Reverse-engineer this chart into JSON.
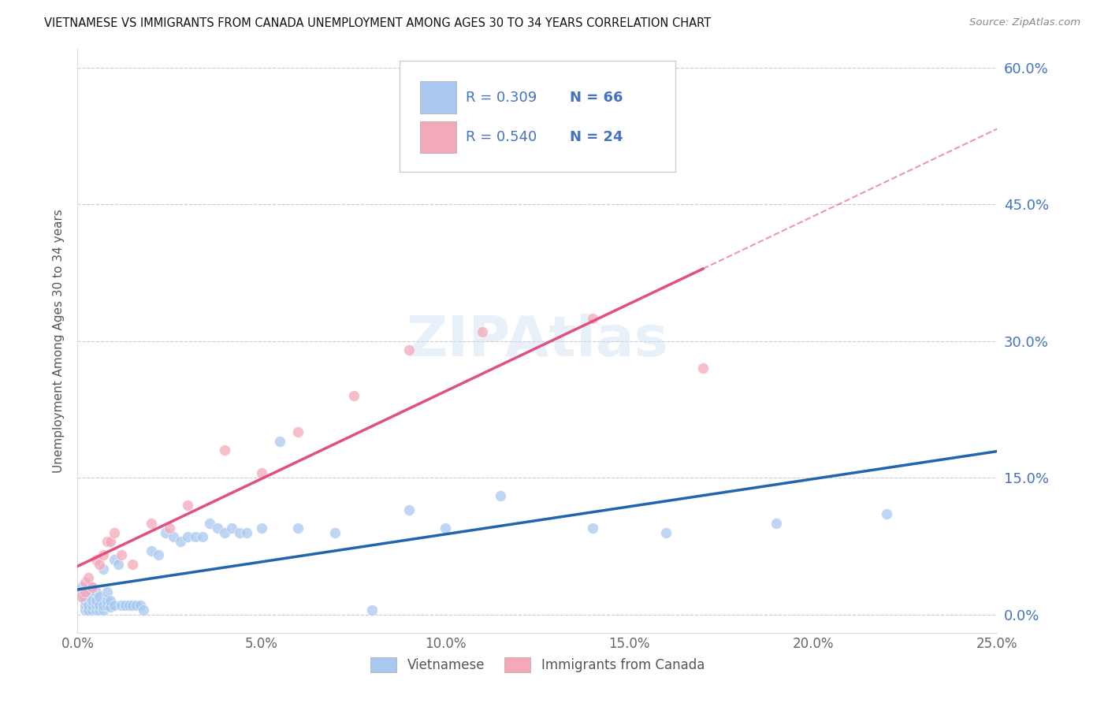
{
  "title": "VIETNAMESE VS IMMIGRANTS FROM CANADA UNEMPLOYMENT AMONG AGES 30 TO 34 YEARS CORRELATION CHART",
  "source": "Source: ZipAtlas.com",
  "ylabel": "Unemployment Among Ages 30 to 34 years",
  "xlabel_ticks": [
    "0.0%",
    "5.0%",
    "10.0%",
    "15.0%",
    "20.0%",
    "25.0%"
  ],
  "ylabel_ticks_right": [
    "0.0%",
    "15.0%",
    "30.0%",
    "45.0%",
    "60.0%"
  ],
  "xlim": [
    0.0,
    0.25
  ],
  "ylim": [
    -0.02,
    0.62
  ],
  "ytick_vals": [
    0.0,
    0.15,
    0.3,
    0.45,
    0.6
  ],
  "xtick_vals": [
    0.0,
    0.05,
    0.1,
    0.15,
    0.2,
    0.25
  ],
  "color_vietnamese": "#a8c8f0",
  "color_canada": "#f4a8b8",
  "trendline_color_vietnamese": "#2166ac",
  "trendline_color_canada": "#e05080",
  "watermark": "ZIPAtlas",
  "vietnamese_x": [
    0.001,
    0.001,
    0.002,
    0.002,
    0.002,
    0.002,
    0.003,
    0.003,
    0.003,
    0.003,
    0.003,
    0.004,
    0.004,
    0.004,
    0.004,
    0.005,
    0.005,
    0.005,
    0.005,
    0.006,
    0.006,
    0.006,
    0.007,
    0.007,
    0.007,
    0.008,
    0.008,
    0.008,
    0.009,
    0.009,
    0.01,
    0.01,
    0.011,
    0.012,
    0.013,
    0.014,
    0.015,
    0.016,
    0.017,
    0.018,
    0.02,
    0.022,
    0.024,
    0.026,
    0.028,
    0.03,
    0.032,
    0.034,
    0.036,
    0.038,
    0.04,
    0.042,
    0.044,
    0.046,
    0.05,
    0.055,
    0.06,
    0.07,
    0.08,
    0.09,
    0.1,
    0.115,
    0.14,
    0.16,
    0.19,
    0.22
  ],
  "vietnamese_y": [
    0.03,
    0.025,
    0.005,
    0.01,
    0.015,
    0.02,
    0.005,
    0.005,
    0.01,
    0.02,
    0.025,
    0.005,
    0.01,
    0.015,
    0.03,
    0.005,
    0.01,
    0.015,
    0.025,
    0.005,
    0.01,
    0.02,
    0.005,
    0.01,
    0.05,
    0.01,
    0.015,
    0.025,
    0.008,
    0.015,
    0.01,
    0.06,
    0.055,
    0.01,
    0.01,
    0.01,
    0.01,
    0.01,
    0.01,
    0.005,
    0.07,
    0.065,
    0.09,
    0.085,
    0.08,
    0.085,
    0.085,
    0.085,
    0.1,
    0.095,
    0.09,
    0.095,
    0.09,
    0.09,
    0.095,
    0.19,
    0.095,
    0.09,
    0.005,
    0.115,
    0.095,
    0.13,
    0.095,
    0.09,
    0.1,
    0.11
  ],
  "canada_x": [
    0.001,
    0.002,
    0.002,
    0.003,
    0.004,
    0.005,
    0.006,
    0.007,
    0.008,
    0.009,
    0.01,
    0.012,
    0.015,
    0.02,
    0.025,
    0.03,
    0.04,
    0.05,
    0.06,
    0.075,
    0.09,
    0.11,
    0.14,
    0.17
  ],
  "canada_y": [
    0.02,
    0.025,
    0.035,
    0.04,
    0.03,
    0.06,
    0.055,
    0.065,
    0.08,
    0.08,
    0.09,
    0.065,
    0.055,
    0.1,
    0.095,
    0.12,
    0.18,
    0.155,
    0.2,
    0.24,
    0.29,
    0.31,
    0.325,
    0.27
  ]
}
